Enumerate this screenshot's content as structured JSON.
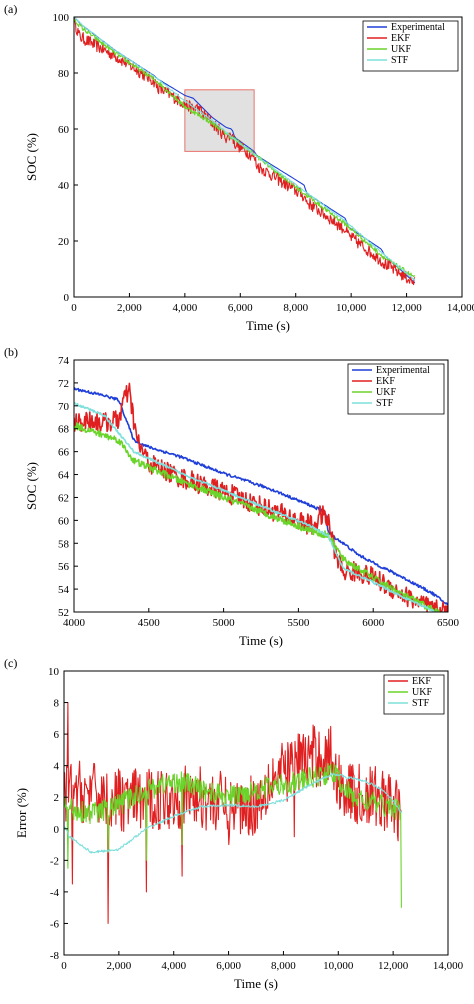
{
  "chart_data": [
    {
      "type": "line",
      "panel_label": "(a)",
      "xlabel": "Time (s)",
      "ylabel": "SOC (%)",
      "xlim": [
        0,
        14000
      ],
      "ylim": [
        0,
        100
      ],
      "xticks": [
        0,
        2000,
        4000,
        6000,
        8000,
        10000,
        12000,
        14000
      ],
      "xtick_labels": [
        "0",
        "2,000",
        "4,000",
        "6,000",
        "8,000",
        "10,000",
        "12,000",
        "14,000"
      ],
      "yticks": [
        0,
        20,
        40,
        60,
        80,
        100
      ],
      "ytick_labels": [
        "0",
        "20",
        "40",
        "60",
        "80",
        "100"
      ],
      "legend_position": "top-right",
      "highlight_region": {
        "x": [
          4000,
          6500
        ],
        "y": [
          52,
          74
        ]
      },
      "series": [
        {
          "name": "Experimental",
          "color": "#1f3fd8",
          "noise": 0,
          "x": [
            0,
            300,
            1500,
            2900,
            3000,
            4000,
            4300,
            4400,
            5000,
            5500,
            5700,
            5800,
            6500,
            6600,
            8300,
            8400,
            9800,
            9900,
            11100,
            11200,
            12300
          ],
          "y": [
            100,
            97,
            88,
            79,
            78,
            72,
            71,
            70,
            64,
            60.5,
            60,
            57,
            52,
            50.5,
            40,
            37,
            28,
            25,
            17,
            15,
            5
          ]
        },
        {
          "name": "EKF",
          "color": "#e02020",
          "noise": 2.2,
          "x": [
            0,
            200,
            1500,
            2900,
            3000,
            4000,
            4300,
            4400,
            5000,
            5500,
            5700,
            5800,
            6500,
            6600,
            8300,
            8400,
            9800,
            9900,
            11100,
            11200,
            12300
          ],
          "y": [
            99,
            93,
            86,
            77,
            75,
            69,
            67,
            68,
            62,
            57,
            58,
            55,
            50,
            47,
            36,
            34,
            24,
            22,
            13,
            12,
            5
          ]
        },
        {
          "name": "UKF",
          "color": "#6ad42a",
          "noise": 0.8,
          "x": [
            0,
            300,
            1500,
            3000,
            4000,
            5000,
            5700,
            6500,
            8300,
            9800,
            11200,
            12300
          ],
          "y": [
            99,
            96,
            87,
            77,
            68,
            62,
            57,
            51,
            37,
            26,
            14,
            7
          ]
        },
        {
          "name": "STF",
          "color": "#7ee0dc",
          "noise": 0.25,
          "x": [
            0,
            300,
            1500,
            3000,
            4000,
            5000,
            5700,
            6500,
            8300,
            9800,
            11200,
            12300
          ],
          "y": [
            100,
            97,
            88,
            78,
            70,
            63,
            57,
            51,
            38,
            27,
            15,
            6
          ]
        }
      ]
    },
    {
      "type": "line",
      "panel_label": "(b)",
      "xlabel": "Time (s)",
      "ylabel": "SOC (%)",
      "xlim": [
        4000,
        6500
      ],
      "ylim": [
        52,
        74
      ],
      "xticks": [
        4000,
        4500,
        5000,
        5500,
        6000,
        6500
      ],
      "xtick_labels": [
        "4000",
        "4500",
        "5000",
        "5500",
        "6000",
        "6500"
      ],
      "yticks": [
        52,
        54,
        56,
        58,
        60,
        62,
        64,
        66,
        68,
        70,
        72,
        74
      ],
      "ytick_labels": [
        "52",
        "54",
        "56",
        "58",
        "60",
        "62",
        "64",
        "66",
        "68",
        "70",
        "72",
        "74"
      ],
      "legend_position": "top-right",
      "series": [
        {
          "name": "Experimental",
          "color": "#1f3fd8",
          "noise": 0.12,
          "x": [
            4000,
            4100,
            4200,
            4300,
            4400,
            4500,
            4700,
            5000,
            5300,
            5600,
            5680,
            5700,
            5800,
            5900,
            6000,
            6200,
            6400,
            6500
          ],
          "y": [
            71.5,
            71.2,
            70.9,
            70.5,
            67.0,
            66.4,
            65.6,
            64.1,
            62.8,
            61.2,
            60.7,
            58.9,
            58.0,
            57.0,
            56.3,
            55.0,
            53.6,
            52.6
          ]
        },
        {
          "name": "EKF",
          "color": "#e02020",
          "noise": 0.9,
          "x": [
            4000,
            4100,
            4200,
            4300,
            4330,
            4370,
            4420,
            4500,
            4700,
            5000,
            5300,
            5600,
            5650,
            5700,
            5750,
            5800,
            5900,
            6000,
            6200,
            6400,
            6500
          ],
          "y": [
            68.5,
            68.8,
            68.5,
            68.8,
            70.5,
            71.2,
            67.0,
            65.0,
            63.8,
            62.5,
            61.0,
            59.5,
            60.5,
            60.0,
            57.0,
            55.5,
            55.5,
            55.0,
            53.5,
            52.2,
            52.0
          ]
        },
        {
          "name": "UKF",
          "color": "#6ad42a",
          "noise": 0.3,
          "x": [
            4000,
            4300,
            4400,
            4700,
            5000,
            5300,
            5600,
            5700,
            5800,
            6000,
            6200,
            6400,
            6500
          ],
          "y": [
            68.3,
            67.0,
            65.2,
            63.5,
            62.0,
            60.5,
            59.0,
            58.7,
            56.6,
            55.0,
            53.5,
            52.2,
            51.5
          ]
        },
        {
          "name": "STF",
          "color": "#7ee0dc",
          "noise": 0.1,
          "x": [
            4000,
            4200,
            4400,
            4700,
            5000,
            5300,
            5600,
            5700,
            5800,
            6000,
            6200,
            6400,
            6500
          ],
          "y": [
            70.2,
            69.2,
            66.0,
            64.2,
            62.6,
            61.0,
            59.4,
            58.6,
            55.8,
            54.6,
            53.3,
            52.1,
            51.5
          ]
        }
      ]
    },
    {
      "type": "line",
      "panel_label": "(c)",
      "xlabel": "Time (s)",
      "ylabel": "Error (%)",
      "xlim": [
        0,
        14000
      ],
      "ylim": [
        -8,
        10
      ],
      "xticks": [
        0,
        2000,
        4000,
        6000,
        8000,
        10000,
        12000,
        14000
      ],
      "xtick_labels": [
        "0",
        "2,000",
        "4,000",
        "6,000",
        "8,000",
        "10,000",
        "12,000",
        "14,000"
      ],
      "yticks": [
        -8,
        -6,
        -4,
        -2,
        0,
        2,
        4,
        6,
        8,
        10
      ],
      "ytick_labels": [
        "-8",
        "-6",
        "-4",
        "-2",
        "0",
        "2",
        "4",
        "6",
        "8",
        "10"
      ],
      "legend_position": "top-right",
      "series": [
        {
          "name": "EKF",
          "color": "#e02020",
          "noise": 2.0,
          "spikes": [
            [
              150,
              8
            ],
            [
              300,
              -3.5
            ],
            [
              1600,
              -6
            ],
            [
              3000,
              -4
            ],
            [
              4300,
              -3
            ],
            [
              6000,
              -1
            ],
            [
              8400,
              -0.5
            ]
          ],
          "x": [
            0,
            200,
            600,
            1200,
            2000,
            3000,
            4000,
            5000,
            6000,
            7000,
            7500,
            8000,
            8500,
            9000,
            9800,
            9900,
            10500,
            11000,
            11500,
            12000,
            12300
          ],
          "y": [
            2,
            2.5,
            2.3,
            2.2,
            1.8,
            1.8,
            2.0,
            2.0,
            1.5,
            1.5,
            3.2,
            3.5,
            4.3,
            4.6,
            4.6,
            3.2,
            2.2,
            2.0,
            2.0,
            1.4,
            1.0
          ]
        },
        {
          "name": "UKF",
          "color": "#6ad42a",
          "noise": 0.7,
          "spikes": [
            [
              150,
              -2.5
            ],
            [
              1600,
              -1.5
            ],
            [
              3000,
              -2
            ],
            [
              4300,
              -1
            ],
            [
              12300,
              -5
            ]
          ],
          "x": [
            0,
            400,
            1000,
            1600,
            2500,
            3500,
            4300,
            5000,
            6000,
            7000,
            8000,
            9000,
            9800,
            10500,
            11000,
            11500,
            12000,
            12300
          ],
          "y": [
            1.5,
            1.2,
            1.0,
            1.2,
            2.0,
            2.8,
            3.0,
            2.5,
            2.0,
            2.5,
            2.8,
            3.2,
            3.6,
            2.0,
            1.8,
            1.5,
            1.4,
            1.0
          ]
        },
        {
          "name": "STF",
          "color": "#7ee0dc",
          "noise": 0.08,
          "x": [
            0,
            200,
            1000,
            2000,
            3000,
            4000,
            5000,
            6000,
            7000,
            8000,
            9000,
            9800,
            10500,
            11000,
            11500,
            12000,
            12300
          ],
          "y": [
            0.2,
            -0.5,
            -1.5,
            -1.3,
            0,
            0.8,
            1.4,
            1.5,
            1.4,
            1.8,
            2.8,
            3.5,
            3.2,
            3.0,
            2.6,
            1.8,
            1.0
          ]
        }
      ]
    }
  ]
}
